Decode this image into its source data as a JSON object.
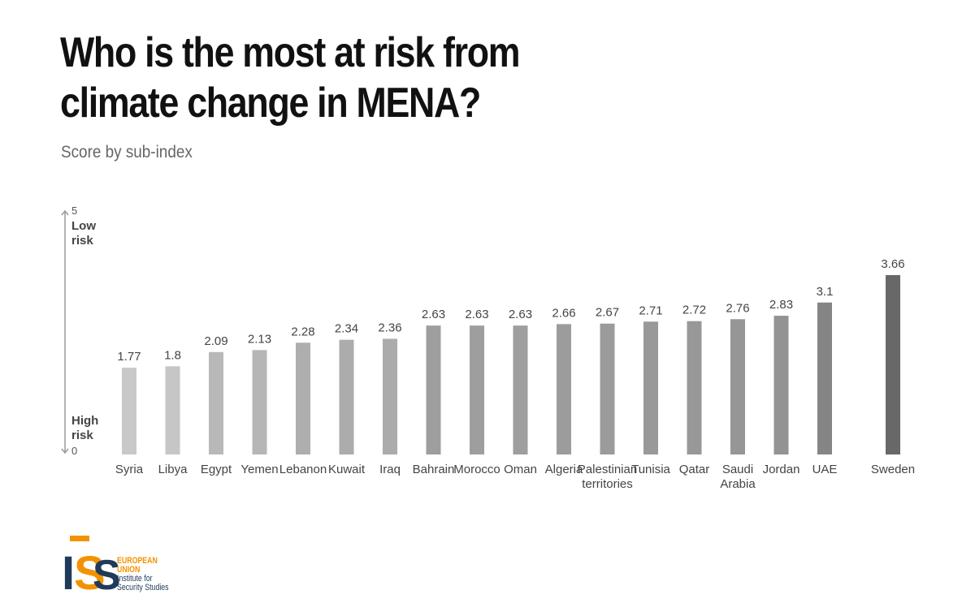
{
  "title_lines": [
    "Who is the most at risk from",
    "climate change in MENA?"
  ],
  "subtitle": "Score by sub-index",
  "logo": {
    "letters": [
      "I",
      "S",
      "S"
    ],
    "eu_lines": [
      "EUROPEAN",
      "UNION"
    ],
    "iss_lines": [
      "Institute for",
      "Security Studies"
    ],
    "orange": "#f39200",
    "navy": "#1f3a5a"
  },
  "chart_data": {
    "type": "bar",
    "title": "Who is the most at risk from climate change in MENA?",
    "subtitle": "Score by sub-index",
    "categories": [
      "Syria",
      "Libya",
      "Egypt",
      "Yemen",
      "Lebanon",
      "Kuwait",
      "Iraq",
      "Bahrain",
      "Morocco",
      "Oman",
      "Algeria",
      "Palestinian territories",
      "Tunisia",
      "Qatar",
      "Saudi Arabia",
      "Jordan",
      "UAE",
      "Sweden"
    ],
    "category_labels": [
      [
        "Syria"
      ],
      [
        "Libya"
      ],
      [
        "Egypt"
      ],
      [
        "Yemen"
      ],
      [
        "Lebanon"
      ],
      [
        "Kuwait"
      ],
      [
        "Iraq"
      ],
      [
        "Bahrain"
      ],
      [
        "Morocco"
      ],
      [
        "Oman"
      ],
      [
        "Algeria"
      ],
      [
        "Palestinian",
        "territories"
      ],
      [
        "Tunisia"
      ],
      [
        "Qatar"
      ],
      [
        "Saudi",
        "Arabia"
      ],
      [
        "Jordan"
      ],
      [
        "UAE"
      ],
      [
        "Sweden"
      ]
    ],
    "values": [
      1.77,
      1.8,
      2.09,
      2.13,
      2.28,
      2.34,
      2.36,
      2.63,
      2.63,
      2.63,
      2.66,
      2.67,
      2.71,
      2.72,
      2.76,
      2.83,
      3.1,
      3.66
    ],
    "value_labels": [
      "1.77",
      "1.8",
      "2.09",
      "2.13",
      "2.28",
      "2.34",
      "2.36",
      "2.63",
      "2.63",
      "2.63",
      "2.66",
      "2.67",
      "2.71",
      "2.72",
      "2.76",
      "2.83",
      "3.1",
      "3.66"
    ],
    "colors": [
      "#c8c8c8",
      "#c6c6c6",
      "#b8b8b8",
      "#b6b6b6",
      "#aeaeae",
      "#acacac",
      "#ababab",
      "#9e9e9e",
      "#9e9e9e",
      "#9e9e9e",
      "#9c9c9c",
      "#9b9b9b",
      "#999999",
      "#989898",
      "#969696",
      "#939393",
      "#858585",
      "#686868"
    ],
    "ylim": [
      0,
      5
    ],
    "y_top_label": "5",
    "y_bottom_label": "0",
    "y_top_annotation": [
      "Low",
      "risk"
    ],
    "y_bottom_annotation": [
      "High",
      "risk"
    ],
    "grid": false
  }
}
